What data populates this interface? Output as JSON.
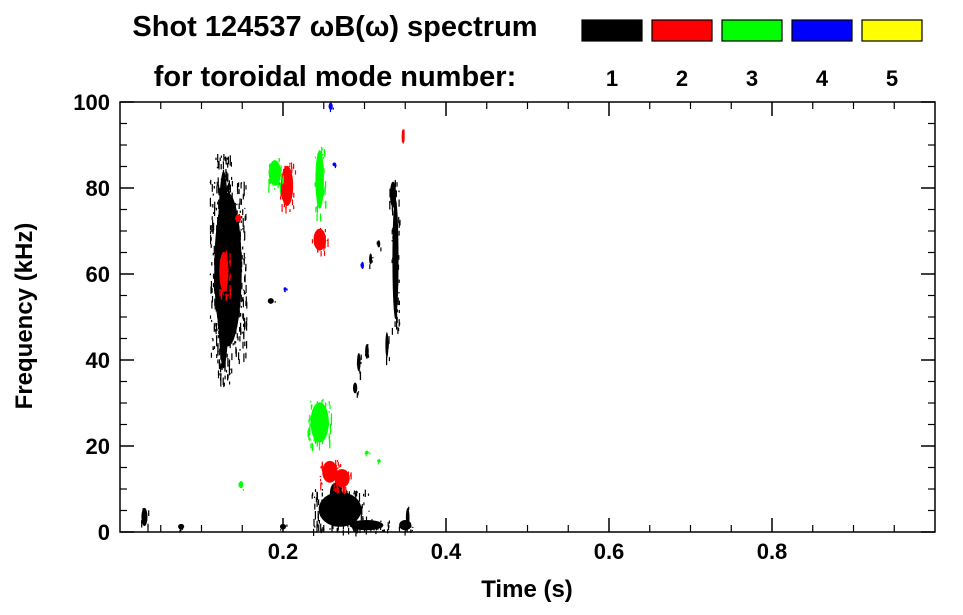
{
  "chart_data": {
    "type": "heatmap",
    "title_line1": "Shot 124537 ωB(ω) spectrum",
    "title_line2": "for toroidal mode number:",
    "xlabel": "Time (s)",
    "ylabel": "Frequency (kHz)",
    "xlim": [
      0,
      1
    ],
    "ylim": [
      0,
      100
    ],
    "x_ticks": [
      0.2,
      0.4,
      0.6,
      0.8
    ],
    "x_tick_labels": [
      "0.2",
      "0.4",
      "0.6",
      "0.8"
    ],
    "y_ticks": [
      0,
      20,
      40,
      60,
      80,
      100
    ],
    "y_tick_labels": [
      "0",
      "20",
      "40",
      "60",
      "80",
      "100"
    ],
    "legend": [
      {
        "label": "1",
        "color": "#000000"
      },
      {
        "label": "2",
        "color": "#ff0000"
      },
      {
        "label": "3",
        "color": "#00ff00"
      },
      {
        "label": "4",
        "color": "#0000ff"
      },
      {
        "label": "5",
        "color": "#ffff00"
      }
    ],
    "series": [
      {
        "mode": "1",
        "color": "#000000",
        "regions": [
          {
            "t0": 0.11,
            "t1": 0.155,
            "f0": 40,
            "f1": 82
          },
          {
            "t0": 0.117,
            "t1": 0.137,
            "f0": 34,
            "f1": 88
          },
          {
            "t0": 0.333,
            "t1": 0.343,
            "f0": 47,
            "f1": 80
          },
          {
            "t0": 0.235,
            "t1": 0.305,
            "f0": 0.5,
            "f1": 10
          },
          {
            "t0": 0.255,
            "t1": 0.275,
            "f0": 6,
            "f1": 12
          },
          {
            "t0": 0.275,
            "t1": 0.33,
            "f0": 0.2,
            "f1": 3
          },
          {
            "t0": 0.195,
            "t1": 0.205,
            "f0": 0.5,
            "f1": 2
          },
          {
            "t0": 0.07,
            "t1": 0.08,
            "f0": 0.5,
            "f1": 2
          },
          {
            "t0": 0.025,
            "t1": 0.035,
            "f0": 1,
            "f1": 6
          },
          {
            "t0": 0.34,
            "t1": 0.36,
            "f0": 0.2,
            "f1": 3
          },
          {
            "t0": 0.18,
            "t1": 0.19,
            "f0": 53,
            "f1": 54.5
          },
          {
            "t0": 0.285,
            "t1": 0.292,
            "f0": 32,
            "f1": 35
          },
          {
            "t0": 0.29,
            "t1": 0.296,
            "f0": 37,
            "f1": 42
          },
          {
            "t0": 0.3,
            "t1": 0.306,
            "f0": 40,
            "f1": 44
          },
          {
            "t0": 0.325,
            "t1": 0.33,
            "f0": 40,
            "f1": 47
          },
          {
            "t0": 0.33,
            "t1": 0.34,
            "f0": 75,
            "f1": 82
          },
          {
            "t0": 0.35,
            "t1": 0.356,
            "f0": 0.5,
            "f1": 6
          },
          {
            "t0": 0.305,
            "t1": 0.31,
            "f0": 62,
            "f1": 65
          },
          {
            "t0": 0.315,
            "t1": 0.32,
            "f0": 66,
            "f1": 68
          }
        ]
      },
      {
        "mode": "2",
        "color": "#ff0000",
        "regions": [
          {
            "t0": 0.12,
            "t1": 0.135,
            "f0": 55,
            "f1": 66
          },
          {
            "t0": 0.195,
            "t1": 0.215,
            "f0": 75,
            "f1": 86
          },
          {
            "t0": 0.235,
            "t1": 0.255,
            "f0": 65,
            "f1": 71
          },
          {
            "t0": 0.245,
            "t1": 0.27,
            "f0": 11,
            "f1": 17
          },
          {
            "t0": 0.26,
            "t1": 0.285,
            "f0": 10,
            "f1": 15
          },
          {
            "t0": 0.14,
            "t1": 0.15,
            "f0": 72,
            "f1": 74
          },
          {
            "t0": 0.345,
            "t1": 0.35,
            "f0": 90,
            "f1": 94
          }
        ]
      },
      {
        "mode": "3",
        "color": "#00ff00",
        "regions": [
          {
            "t0": 0.23,
            "t1": 0.26,
            "f0": 20,
            "f1": 31
          },
          {
            "t0": 0.18,
            "t1": 0.2,
            "f0": 80,
            "f1": 87
          },
          {
            "t0": 0.238,
            "t1": 0.252,
            "f0": 74,
            "f1": 90
          },
          {
            "t0": 0.145,
            "t1": 0.152,
            "f0": 10,
            "f1": 12
          },
          {
            "t0": 0.3,
            "t1": 0.306,
            "f0": 18,
            "f1": 19
          },
          {
            "t0": 0.315,
            "t1": 0.32,
            "f0": 16,
            "f1": 17
          }
        ]
      },
      {
        "mode": "4",
        "color": "#0000ff",
        "regions": [
          {
            "t0": 0.255,
            "t1": 0.262,
            "f0": 98,
            "f1": 100
          },
          {
            "t0": 0.26,
            "t1": 0.266,
            "f0": 85,
            "f1": 86
          },
          {
            "t0": 0.295,
            "t1": 0.3,
            "f0": 61,
            "f1": 63
          },
          {
            "t0": 0.2,
            "t1": 0.205,
            "f0": 56,
            "f1": 57
          }
        ]
      },
      {
        "mode": "5",
        "color": "#ffff00",
        "regions": []
      }
    ]
  }
}
